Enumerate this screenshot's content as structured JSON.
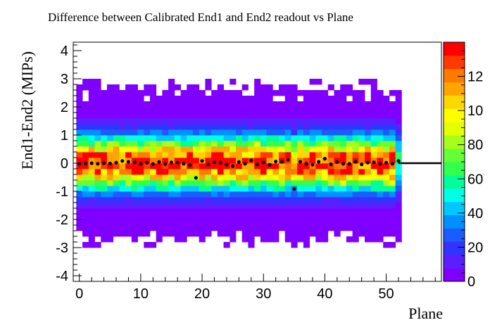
{
  "chart_data": {
    "type": "heatmap",
    "title": "Difference between Calibrated End1 and End2 readout vs Plane",
    "xlabel": "Plane",
    "ylabel": "End1-End2 (MIPs)",
    "xlim": [
      -1,
      59
    ],
    "ylim": [
      -4.2,
      4.3
    ],
    "x_ticks": [
      "0",
      "10",
      "20",
      "30",
      "40",
      "50"
    ],
    "y_ticks": [
      "-4",
      "-3",
      "-2",
      "-1",
      "0",
      "1",
      "2",
      "3",
      "4"
    ],
    "z_range": [
      0,
      140
    ],
    "palette_ticks": [
      "0",
      "20",
      "40",
      "60",
      "80",
      "10",
      "12"
    ],
    "colors": {
      "axis": "#000000",
      "profile_marker": "#000000",
      "palette": [
        "#7f00ff",
        "#5a1fff",
        "#3333ff",
        "#1a5cff",
        "#0090ff",
        "#00c8ff",
        "#00ffe6",
        "#00ff99",
        "#33ff4d",
        "#66ff33",
        "#a6ff1a",
        "#e6ff00",
        "#ffff00",
        "#ffd700",
        "#ffa500",
        "#ff7a00",
        "#ff3a00",
        "#ff0000"
      ]
    },
    "profile": {
      "x": [
        0,
        1,
        2,
        3,
        4,
        5,
        6,
        7,
        8,
        9,
        10,
        11,
        12,
        13,
        14,
        15,
        16,
        17,
        18,
        19,
        20,
        21,
        22,
        23,
        24,
        25,
        26,
        27,
        28,
        29,
        30,
        31,
        32,
        33,
        34,
        35,
        36,
        37,
        38,
        39,
        40,
        41,
        42,
        43,
        44,
        45,
        46,
        47,
        48,
        49,
        50,
        51,
        52
      ],
      "y": [
        -0.02,
        -0.01,
        0.0,
        -0.02,
        0.0,
        -0.01,
        0.02,
        0.08,
        0.05,
        0.03,
        -0.02,
        0.02,
        -0.03,
        0.04,
        -0.03,
        0.03,
        0.02,
        -0.02,
        -0.07,
        -0.52,
        0.08,
        -0.04,
        0.03,
        0.02,
        -0.05,
        -0.1,
        0.04,
        -0.02,
        0.1,
        -0.04,
        0.03,
        -0.06,
        0.06,
        0.05,
        0.12,
        -0.92,
        0.05,
        -0.02,
        -0.05,
        0.05,
        0.16,
        -0.04,
        0.04,
        -0.02,
        -0.02,
        0.05,
        -0.04,
        0.02,
        0.03,
        -0.02,
        0.02,
        -0.02,
        0.08
      ],
      "extension_line": {
        "from_x": 52,
        "to_x": 59,
        "y": 0.0
      }
    }
  }
}
